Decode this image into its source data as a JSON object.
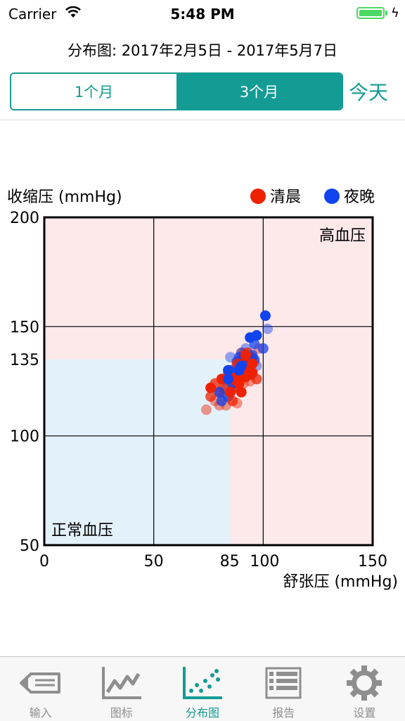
{
  "status_bar": {
    "carrier": "Carrier",
    "time": "5:48 PM"
  },
  "header": {
    "title": "分布图: 2017年2月5日 - 2017年5月7日",
    "segments": [
      {
        "label": "1个月",
        "selected": false
      },
      {
        "label": "3个月",
        "selected": true
      }
    ],
    "today_label": "今天"
  },
  "colors": {
    "accent": "#139c94",
    "hypertension_zone": "#fde8ea",
    "normal_zone": "#e3f1fb",
    "morning": "#ee2200",
    "evening": "#1144ee"
  },
  "chart_data": {
    "type": "scatter",
    "xlabel": "舒张压 (mmHg)",
    "ylabel": "收缩压 (mmHg)",
    "xlim": [
      0,
      150
    ],
    "ylim": [
      50,
      200
    ],
    "x_ticks": [
      0,
      50,
      85,
      100,
      150
    ],
    "y_ticks": [
      50,
      100,
      135,
      150,
      200
    ],
    "grid_x": [
      50,
      100
    ],
    "grid_y": [
      100,
      150
    ],
    "legend_position": "top-right",
    "zones": [
      {
        "label": "高血压",
        "kind": "hypertension"
      },
      {
        "label": "正常血压",
        "kind": "normal",
        "x_max": 85,
        "y_max": 135
      }
    ],
    "series": [
      {
        "name": "清晨",
        "color": "#ee2200",
        "points": [
          [
            74,
            112
          ],
          [
            76,
            118
          ],
          [
            76,
            122
          ],
          [
            78,
            116
          ],
          [
            78,
            124
          ],
          [
            80,
            114
          ],
          [
            80,
            120
          ],
          [
            81,
            126
          ],
          [
            82,
            118
          ],
          [
            82,
            122
          ],
          [
            83,
            114
          ],
          [
            84,
            128
          ],
          [
            85,
            120
          ],
          [
            85,
            125
          ],
          [
            86,
            116
          ],
          [
            86,
            130
          ],
          [
            87,
            122
          ],
          [
            87,
            127
          ],
          [
            88,
            115
          ],
          [
            88,
            124
          ],
          [
            88,
            130
          ],
          [
            89,
            126
          ],
          [
            90,
            120
          ],
          [
            90,
            128
          ],
          [
            90,
            133
          ],
          [
            91,
            124
          ],
          [
            91,
            136
          ],
          [
            92,
            127
          ],
          [
            93,
            131
          ],
          [
            93,
            138
          ],
          [
            94,
            125
          ],
          [
            94,
            135
          ],
          [
            95,
            129
          ],
          [
            96,
            134
          ],
          [
            97,
            126
          ],
          [
            98,
            140
          ],
          [
            85,
            127
          ],
          [
            86,
            126
          ],
          [
            87,
            126
          ],
          [
            88,
            128
          ],
          [
            89,
            128
          ],
          [
            89,
            131
          ],
          [
            90,
            130
          ],
          [
            90,
            136
          ],
          [
            91,
            130
          ],
          [
            91,
            133
          ],
          [
            92,
            132
          ],
          [
            92,
            137
          ],
          [
            93,
            129
          ],
          [
            93,
            134
          ],
          [
            94,
            132
          ],
          [
            94,
            128
          ],
          [
            95,
            133
          ],
          [
            89,
            133
          ],
          [
            88,
            133
          ],
          [
            90,
            138
          ],
          [
            91,
            128
          ],
          [
            92,
            130
          ],
          [
            93,
            136
          ],
          [
            87,
            129
          ],
          [
            86,
            128
          ],
          [
            92,
            135
          ],
          [
            94,
            130
          ],
          [
            90,
            126
          ],
          [
            88,
            126
          ],
          [
            91,
            138
          ],
          [
            95,
            136
          ],
          [
            89,
            124
          ]
        ]
      },
      {
        "name": "夜晚",
        "color": "#1144ee",
        "points": [
          [
            80,
            120
          ],
          [
            82,
            126
          ],
          [
            84,
            118
          ],
          [
            84,
            130
          ],
          [
            85,
            136
          ],
          [
            86,
            124
          ],
          [
            87,
            128
          ],
          [
            88,
            134
          ],
          [
            89,
            130
          ],
          [
            90,
            138
          ],
          [
            91,
            132
          ],
          [
            92,
            140
          ],
          [
            93,
            134
          ],
          [
            94,
            145
          ],
          [
            95,
            128
          ],
          [
            96,
            142
          ],
          [
            97,
            132
          ],
          [
            100,
            140
          ],
          [
            101,
            155
          ],
          [
            102,
            149
          ],
          [
            81,
            116
          ],
          [
            83,
            122
          ],
          [
            86,
            128
          ],
          [
            90,
            132
          ],
          [
            91,
            136
          ],
          [
            93,
            130
          ],
          [
            94,
            136
          ],
          [
            96,
            135
          ],
          [
            97,
            146
          ],
          [
            88,
            124
          ],
          [
            85,
            130
          ],
          [
            92,
            129
          ],
          [
            89,
            136
          ],
          [
            84,
            126
          ],
          [
            87,
            122
          ],
          [
            95,
            137
          ]
        ]
      }
    ]
  },
  "tab_bar": {
    "items": [
      {
        "label": "输入",
        "icon": "pencil-input-icon",
        "active": false
      },
      {
        "label": "图标",
        "icon": "line-graph-icon",
        "active": false
      },
      {
        "label": "分布图",
        "icon": "scatter-plot-icon",
        "active": true
      },
      {
        "label": "报告",
        "icon": "list-report-icon",
        "active": false
      },
      {
        "label": "设置",
        "icon": "gear-icon",
        "active": false
      }
    ]
  }
}
